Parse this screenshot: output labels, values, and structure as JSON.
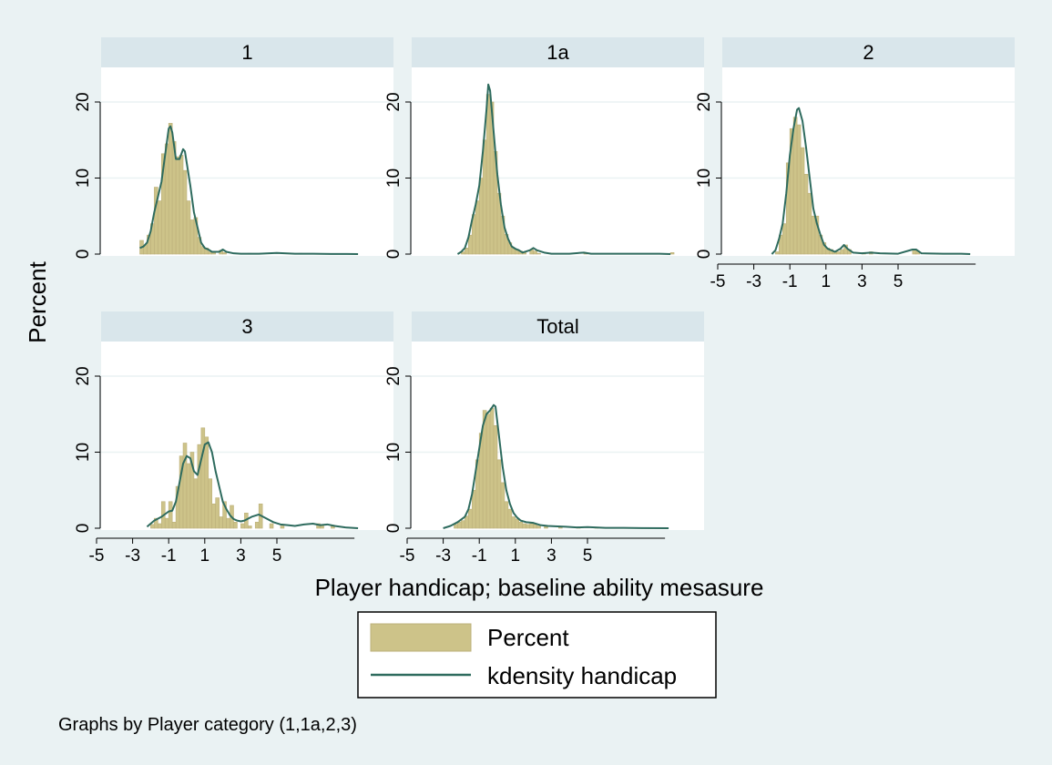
{
  "chart_data": {
    "type": "histogram-kdensity-panels",
    "ylabel": "Percent",
    "xlabel": "Player handicap; baseline ability mesasure",
    "note": "Graphs by Player category (1,1a,2,3)",
    "x_ticks": [
      "-5",
      "-3",
      "-1",
      "1",
      "3",
      "5"
    ],
    "y_ticks": [
      "0",
      "10",
      "20"
    ],
    "xlim": [
      -6,
      10
    ],
    "ylim": [
      0,
      24
    ],
    "legend": {
      "position": "bottom",
      "entries": [
        "Percent",
        "kdensity handicap"
      ]
    },
    "series_colors": {
      "bars": "#cdc389",
      "bar_border": "#bcb07a",
      "line": "#2e6b5e"
    },
    "panels": [
      {
        "title": "1",
        "bars": [
          [
            -2.5,
            1.8
          ],
          [
            -2.3,
            1.2
          ],
          [
            -2.1,
            2.5
          ],
          [
            -1.9,
            4.0
          ],
          [
            -1.7,
            8.8
          ],
          [
            -1.5,
            7.0
          ],
          [
            -1.3,
            13.2
          ],
          [
            -1.1,
            14.5
          ],
          [
            -0.9,
            17.2
          ],
          [
            -0.7,
            14.8
          ],
          [
            -0.5,
            12.8
          ],
          [
            -0.3,
            13.0
          ],
          [
            -0.1,
            11.0
          ],
          [
            0.1,
            7.0
          ],
          [
            0.3,
            4.5
          ],
          [
            0.5,
            4.8
          ],
          [
            0.7,
            2.2
          ],
          [
            0.9,
            1.0
          ],
          [
            1.1,
            0.8
          ],
          [
            1.3,
            0.3
          ],
          [
            1.5,
            0.2
          ],
          [
            1.9,
            0.5
          ],
          [
            2.1,
            0.2
          ],
          [
            3.5,
            0.1
          ],
          [
            6.3,
            0.1
          ]
        ],
        "density": [
          [
            -2.6,
            0.8
          ],
          [
            -2.4,
            1.0
          ],
          [
            -2.2,
            1.5
          ],
          [
            -2.0,
            3.0
          ],
          [
            -1.8,
            5.5
          ],
          [
            -1.6,
            7.5
          ],
          [
            -1.4,
            9.5
          ],
          [
            -1.2,
            13.0
          ],
          [
            -1.0,
            16.5
          ],
          [
            -0.9,
            16.8
          ],
          [
            -0.8,
            16.0
          ],
          [
            -0.6,
            12.5
          ],
          [
            -0.4,
            12.5
          ],
          [
            -0.2,
            13.8
          ],
          [
            -0.1,
            13.5
          ],
          [
            0.0,
            12.0
          ],
          [
            0.2,
            9.0
          ],
          [
            0.4,
            5.5
          ],
          [
            0.6,
            3.5
          ],
          [
            0.8,
            1.5
          ],
          [
            1.0,
            0.8
          ],
          [
            1.2,
            0.6
          ],
          [
            1.4,
            0.3
          ],
          [
            1.8,
            0.3
          ],
          [
            2.0,
            0.6
          ],
          [
            2.2,
            0.3
          ],
          [
            2.6,
            0.1
          ],
          [
            3.0,
            0.05
          ],
          [
            4.0,
            0.05
          ],
          [
            5.0,
            0.15
          ],
          [
            6.0,
            0.05
          ],
          [
            7.0,
            0.05
          ],
          [
            8.0,
            0.02
          ],
          [
            9.5,
            0.0
          ]
        ]
      },
      {
        "title": "1a",
        "bars": [
          [
            -1.9,
            0.3
          ],
          [
            -1.7,
            0.8
          ],
          [
            -1.5,
            2.5
          ],
          [
            -1.3,
            5.2
          ],
          [
            -1.1,
            7.0
          ],
          [
            -0.9,
            10.0
          ],
          [
            -0.7,
            15.0
          ],
          [
            -0.5,
            21.0
          ],
          [
            -0.3,
            20.0
          ],
          [
            -0.1,
            13.5
          ],
          [
            0.1,
            8.0
          ],
          [
            0.3,
            5.0
          ],
          [
            0.5,
            2.6
          ],
          [
            0.7,
            1.5
          ],
          [
            0.9,
            0.8
          ],
          [
            1.1,
            0.6
          ],
          [
            1.3,
            0.4
          ],
          [
            1.5,
            0.3
          ],
          [
            1.9,
            0.6
          ],
          [
            2.1,
            0.4
          ],
          [
            2.3,
            0.1
          ],
          [
            4.9,
            0.2
          ],
          [
            9.7,
            0.2
          ]
        ],
        "density": [
          [
            -2.2,
            0.0
          ],
          [
            -2.0,
            0.3
          ],
          [
            -1.8,
            0.8
          ],
          [
            -1.6,
            2.2
          ],
          [
            -1.4,
            4.5
          ],
          [
            -1.2,
            6.5
          ],
          [
            -1.0,
            9.0
          ],
          [
            -0.8,
            13.5
          ],
          [
            -0.6,
            19.0
          ],
          [
            -0.5,
            22.3
          ],
          [
            -0.4,
            21.5
          ],
          [
            -0.2,
            16.0
          ],
          [
            0.0,
            10.5
          ],
          [
            0.2,
            6.5
          ],
          [
            0.4,
            3.5
          ],
          [
            0.6,
            2.0
          ],
          [
            0.8,
            1.0
          ],
          [
            1.0,
            0.7
          ],
          [
            1.2,
            0.5
          ],
          [
            1.4,
            0.2
          ],
          [
            1.8,
            0.5
          ],
          [
            2.0,
            0.8
          ],
          [
            2.2,
            0.5
          ],
          [
            2.6,
            0.2
          ],
          [
            3.0,
            0.05
          ],
          [
            4.0,
            0.05
          ],
          [
            4.8,
            0.2
          ],
          [
            5.2,
            0.05
          ],
          [
            6.0,
            0.05
          ],
          [
            7.0,
            0.05
          ],
          [
            8.0,
            0.05
          ],
          [
            9.0,
            0.05
          ],
          [
            9.6,
            0.0
          ]
        ]
      },
      {
        "title": "2",
        "bars": [
          [
            -1.7,
            0.3
          ],
          [
            -1.5,
            2.5
          ],
          [
            -1.3,
            4.0
          ],
          [
            -1.1,
            12.0
          ],
          [
            -0.9,
            16.5
          ],
          [
            -0.7,
            18.0
          ],
          [
            -0.5,
            17.0
          ],
          [
            -0.3,
            14.0
          ],
          [
            -0.1,
            10.5
          ],
          [
            0.1,
            8.0
          ],
          [
            0.3,
            5.0
          ],
          [
            0.5,
            5.0
          ],
          [
            0.7,
            2.5
          ],
          [
            0.9,
            1.5
          ],
          [
            1.1,
            0.8
          ],
          [
            1.3,
            0.6
          ],
          [
            1.5,
            0.3
          ],
          [
            1.7,
            0.3
          ],
          [
            1.9,
            0.6
          ],
          [
            2.1,
            1.2
          ],
          [
            2.3,
            0.6
          ],
          [
            3.1,
            0.2
          ],
          [
            3.5,
            0.3
          ],
          [
            5.9,
            0.6
          ],
          [
            6.1,
            0.4
          ]
        ],
        "density": [
          [
            -2.0,
            0.0
          ],
          [
            -1.8,
            0.5
          ],
          [
            -1.6,
            2.0
          ],
          [
            -1.4,
            4.0
          ],
          [
            -1.2,
            8.0
          ],
          [
            -1.0,
            13.0
          ],
          [
            -0.8,
            16.5
          ],
          [
            -0.6,
            19.0
          ],
          [
            -0.5,
            19.2
          ],
          [
            -0.3,
            17.5
          ],
          [
            -0.1,
            14.0
          ],
          [
            0.1,
            10.0
          ],
          [
            0.3,
            6.0
          ],
          [
            0.5,
            4.0
          ],
          [
            0.7,
            2.5
          ],
          [
            0.9,
            1.2
          ],
          [
            1.1,
            0.7
          ],
          [
            1.3,
            0.5
          ],
          [
            1.5,
            0.3
          ],
          [
            1.8,
            0.7
          ],
          [
            2.0,
            1.2
          ],
          [
            2.2,
            0.7
          ],
          [
            2.5,
            0.2
          ],
          [
            3.0,
            0.1
          ],
          [
            3.5,
            0.2
          ],
          [
            4.0,
            0.1
          ],
          [
            5.0,
            0.05
          ],
          [
            5.8,
            0.6
          ],
          [
            6.0,
            0.6
          ],
          [
            6.3,
            0.1
          ],
          [
            7.5,
            0.05
          ],
          [
            8.5,
            0.05
          ],
          [
            9.0,
            0.0
          ]
        ]
      },
      {
        "title": "3",
        "bars": [
          [
            -1.9,
            0.5
          ],
          [
            -1.7,
            1.3
          ],
          [
            -1.5,
            0.6
          ],
          [
            -1.3,
            3.5
          ],
          [
            -1.1,
            1.3
          ],
          [
            -0.9,
            3.5
          ],
          [
            -0.7,
            0.8
          ],
          [
            -0.5,
            5.5
          ],
          [
            -0.3,
            9.5
          ],
          [
            -0.1,
            11.2
          ],
          [
            0.1,
            8.5
          ],
          [
            0.3,
            10.0
          ],
          [
            0.5,
            6.5
          ],
          [
            0.7,
            11.0
          ],
          [
            0.9,
            13.2
          ],
          [
            1.1,
            12.0
          ],
          [
            1.3,
            6.5
          ],
          [
            1.5,
            3.2
          ],
          [
            1.7,
            4.0
          ],
          [
            1.9,
            1.5
          ],
          [
            2.1,
            3.5
          ],
          [
            2.3,
            1.3
          ],
          [
            2.5,
            3.0
          ],
          [
            2.7,
            0.8
          ],
          [
            3.1,
            0.6
          ],
          [
            3.3,
            2.0
          ],
          [
            3.5,
            0.3
          ],
          [
            3.9,
            0.8
          ],
          [
            4.1,
            3.2
          ],
          [
            4.7,
            0.6
          ],
          [
            5.3,
            0.3
          ],
          [
            7.3,
            0.6
          ],
          [
            7.5,
            0.5
          ],
          [
            8.1,
            0.4
          ]
        ],
        "density": [
          [
            -2.2,
            0.2
          ],
          [
            -1.8,
            1.0
          ],
          [
            -1.4,
            1.5
          ],
          [
            -1.0,
            2.2
          ],
          [
            -0.8,
            2.3
          ],
          [
            -0.6,
            3.5
          ],
          [
            -0.4,
            6.0
          ],
          [
            -0.2,
            8.5
          ],
          [
            0.0,
            9.5
          ],
          [
            0.2,
            9.2
          ],
          [
            0.4,
            7.5
          ],
          [
            0.6,
            7.0
          ],
          [
            0.8,
            9.0
          ],
          [
            1.0,
            11.0
          ],
          [
            1.2,
            11.3
          ],
          [
            1.4,
            10.0
          ],
          [
            1.6,
            7.5
          ],
          [
            1.8,
            5.5
          ],
          [
            2.0,
            3.5
          ],
          [
            2.2,
            2.5
          ],
          [
            2.4,
            1.7
          ],
          [
            2.6,
            1.2
          ],
          [
            2.8,
            1.0
          ],
          [
            3.0,
            0.9
          ],
          [
            3.2,
            1.0
          ],
          [
            3.6,
            1.5
          ],
          [
            4.0,
            1.8
          ],
          [
            4.4,
            1.3
          ],
          [
            4.8,
            0.8
          ],
          [
            5.2,
            0.5
          ],
          [
            5.6,
            0.4
          ],
          [
            6.0,
            0.3
          ],
          [
            6.5,
            0.5
          ],
          [
            7.0,
            0.6
          ],
          [
            7.4,
            0.4
          ],
          [
            7.8,
            0.5
          ],
          [
            8.2,
            0.3
          ],
          [
            8.8,
            0.1
          ],
          [
            9.5,
            0.0
          ]
        ]
      },
      {
        "title": "Total",
        "bars": [
          [
            -2.3,
            0.5
          ],
          [
            -2.1,
            0.8
          ],
          [
            -1.9,
            1.0
          ],
          [
            -1.7,
            1.6
          ],
          [
            -1.5,
            2.5
          ],
          [
            -1.3,
            5.0
          ],
          [
            -1.1,
            9.0
          ],
          [
            -0.9,
            12.5
          ],
          [
            -0.7,
            15.5
          ],
          [
            -0.5,
            15.0
          ],
          [
            -0.3,
            15.8
          ],
          [
            -0.1,
            13.5
          ],
          [
            0.1,
            9.0
          ],
          [
            0.3,
            6.0
          ],
          [
            0.5,
            3.5
          ],
          [
            0.7,
            2.5
          ],
          [
            0.9,
            1.5
          ],
          [
            1.1,
            1.2
          ],
          [
            1.3,
            0.8
          ],
          [
            1.5,
            0.6
          ],
          [
            1.7,
            0.5
          ],
          [
            1.9,
            0.6
          ],
          [
            2.1,
            0.5
          ],
          [
            2.3,
            0.3
          ],
          [
            2.7,
            0.2
          ],
          [
            3.5,
            0.15
          ],
          [
            4.5,
            0.1
          ],
          [
            5.5,
            0.1
          ],
          [
            6.5,
            0.05
          ]
        ],
        "density": [
          [
            -3.0,
            0.0
          ],
          [
            -2.6,
            0.3
          ],
          [
            -2.2,
            0.8
          ],
          [
            -1.8,
            1.5
          ],
          [
            -1.6,
            2.5
          ],
          [
            -1.4,
            4.5
          ],
          [
            -1.2,
            7.5
          ],
          [
            -1.0,
            10.5
          ],
          [
            -0.8,
            13.5
          ],
          [
            -0.6,
            15.0
          ],
          [
            -0.4,
            15.5
          ],
          [
            -0.2,
            16.2
          ],
          [
            -0.1,
            16.0
          ],
          [
            0.1,
            12.0
          ],
          [
            0.3,
            8.0
          ],
          [
            0.5,
            5.0
          ],
          [
            0.7,
            3.2
          ],
          [
            0.9,
            2.0
          ],
          [
            1.1,
            1.4
          ],
          [
            1.3,
            1.0
          ],
          [
            1.6,
            0.8
          ],
          [
            2.0,
            0.7
          ],
          [
            2.4,
            0.4
          ],
          [
            2.8,
            0.3
          ],
          [
            3.2,
            0.25
          ],
          [
            3.8,
            0.2
          ],
          [
            4.4,
            0.1
          ],
          [
            5.0,
            0.15
          ],
          [
            6.0,
            0.05
          ],
          [
            7.0,
            0.05
          ],
          [
            8.0,
            0.02
          ],
          [
            9.5,
            0.0
          ]
        ]
      }
    ]
  }
}
